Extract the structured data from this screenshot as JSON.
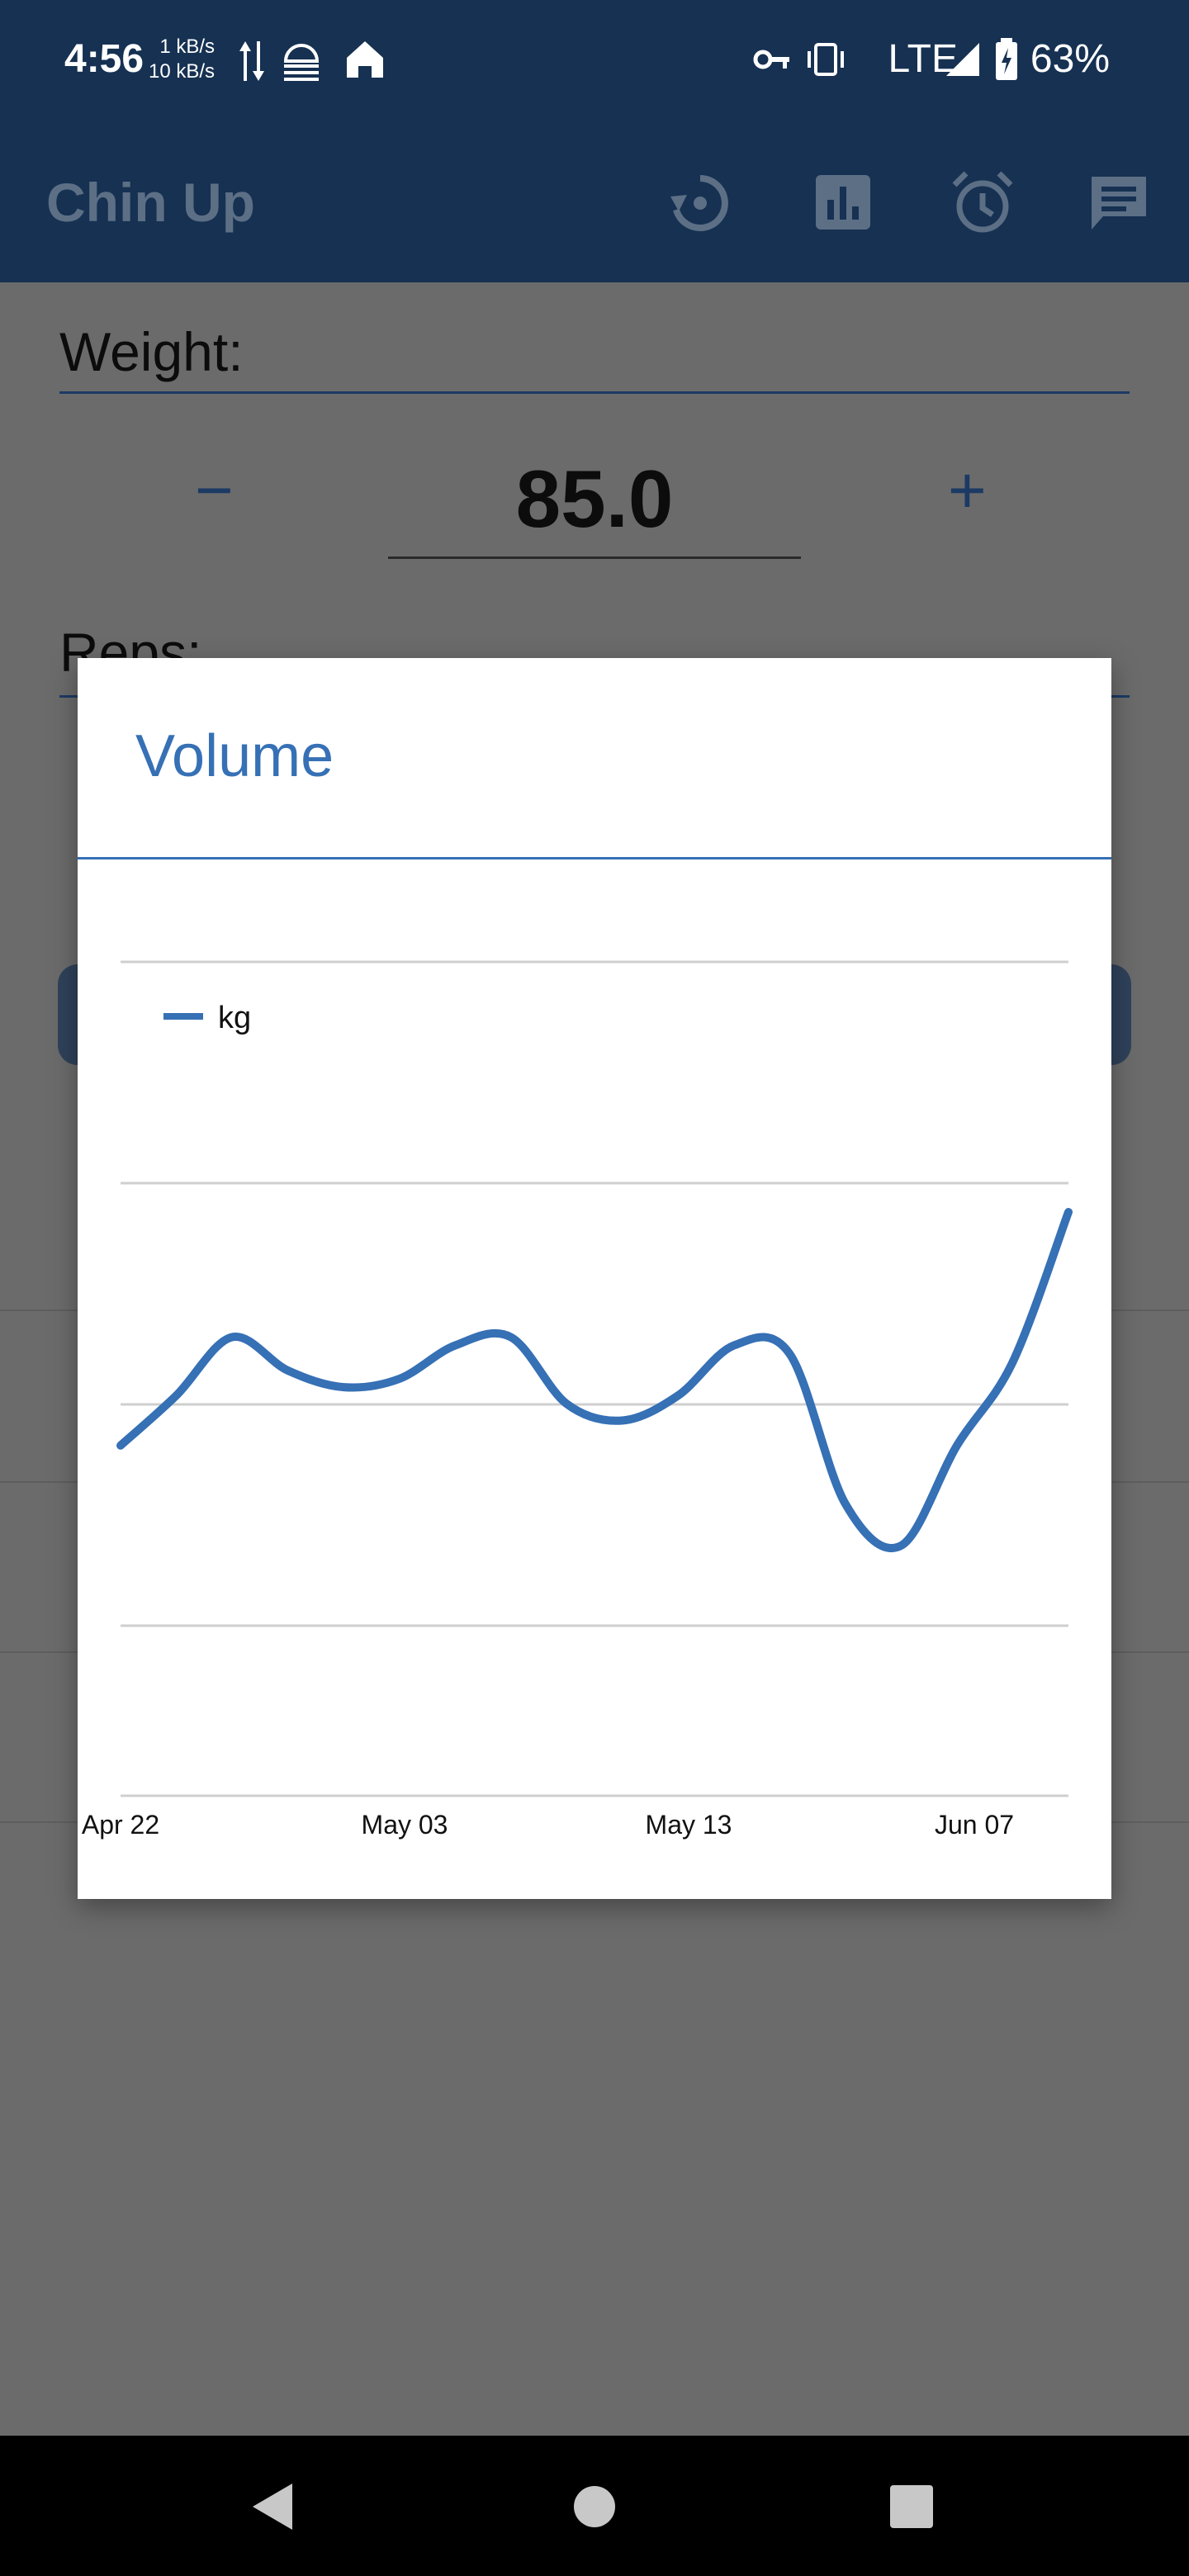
{
  "status_bar": {
    "time": "4:56",
    "up_speed": "1 kB/s",
    "down_speed": "10 kB/s",
    "network": "LTE",
    "battery": "63%"
  },
  "app_bar": {
    "title": "Chin Up",
    "icons": [
      "history-icon",
      "chart-icon",
      "alarm-icon",
      "message-icon"
    ]
  },
  "form": {
    "weight_label": "Weight:",
    "weight_value": "85.0",
    "decrement": "−",
    "increment": "+",
    "reps_label": "Reps:"
  },
  "dialog": {
    "title": "Volume"
  },
  "chart_data": {
    "type": "line",
    "legend": [
      "kg"
    ],
    "x_ticks": [
      "Apr 22",
      "May 03",
      "May 13",
      "Jun 07"
    ],
    "series": [
      {
        "name": "kg",
        "color": "#3670b5",
        "values": [
          0.92,
          0.98,
          1.05,
          1.01,
          0.99,
          1.0,
          1.04,
          1.05,
          0.97,
          0.95,
          0.98,
          1.04,
          1.03,
          0.85,
          0.8,
          0.92,
          1.02,
          1.2
        ]
      }
    ]
  },
  "colors": {
    "primary": "#163152",
    "accent": "#3670b5",
    "scrim": "#6b6b6b"
  }
}
